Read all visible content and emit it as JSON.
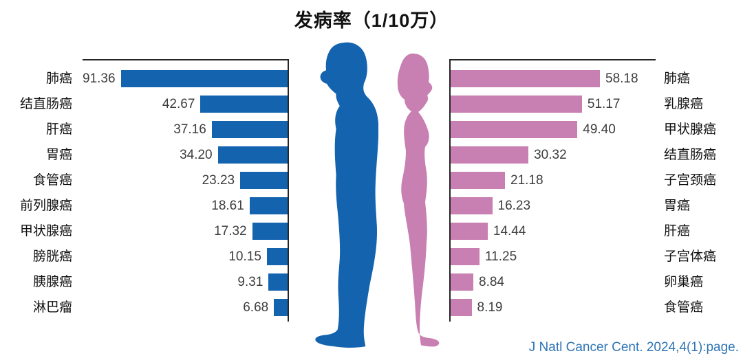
{
  "title": "发病率（1/10万）",
  "citation": "J Natl Cancer Cent. 2024,4(1):page.",
  "colors": {
    "male_bar": "#1463AE",
    "female_bar": "#C87FB1",
    "axis": "#262626",
    "value_text": "#3d3d3d",
    "label_text": "#111111",
    "citation_text": "#2E74B5"
  },
  "chart_data": {
    "type": "bar",
    "title": "发病率（1/10万）",
    "unit": "1/10万 (per 100,000)",
    "orientation": "horizontal, bidirectional (male bars grow leftward, female bars grow rightward)",
    "legend": "none (male/female indicated by center silhouettes)",
    "grid": false,
    "series": [
      {
        "name": "male",
        "direction": "left",
        "color": "#1463AE",
        "categories": [
          "肺癌",
          "结直肠癌",
          "肝癌",
          "胃癌",
          "食管癌",
          "前列腺癌",
          "甲状腺癌",
          "膀胱癌",
          "胰腺癌",
          "淋巴瘤"
        ],
        "values": [
          91.36,
          42.67,
          37.16,
          34.2,
          23.23,
          18.61,
          17.32,
          10.15,
          9.31,
          6.68
        ],
        "values_display": [
          "91.36",
          "42.67",
          "37.16",
          "34.20",
          "23.23",
          "18.61",
          "17.32",
          "10.15",
          "9.31",
          "6.68"
        ]
      },
      {
        "name": "female",
        "direction": "right",
        "color": "#C87FB1",
        "categories": [
          "肺癌",
          "乳腺癌",
          "甲状腺癌",
          "结直肠癌",
          "子宫颈癌",
          "胃癌",
          "肝癌",
          "子宫体癌",
          "卵巢癌",
          "食管癌"
        ],
        "values": [
          58.18,
          51.17,
          49.4,
          30.32,
          21.18,
          16.23,
          14.44,
          11.25,
          8.84,
          8.19
        ],
        "values_display": [
          "58.18",
          "51.17",
          "49.40",
          "30.32",
          "21.18",
          "16.23",
          "14.44",
          "11.25",
          "8.84",
          "8.19"
        ]
      }
    ],
    "xlim_male": [
      0,
      101
    ],
    "xlim_female": [
      0,
      80.4
    ]
  }
}
